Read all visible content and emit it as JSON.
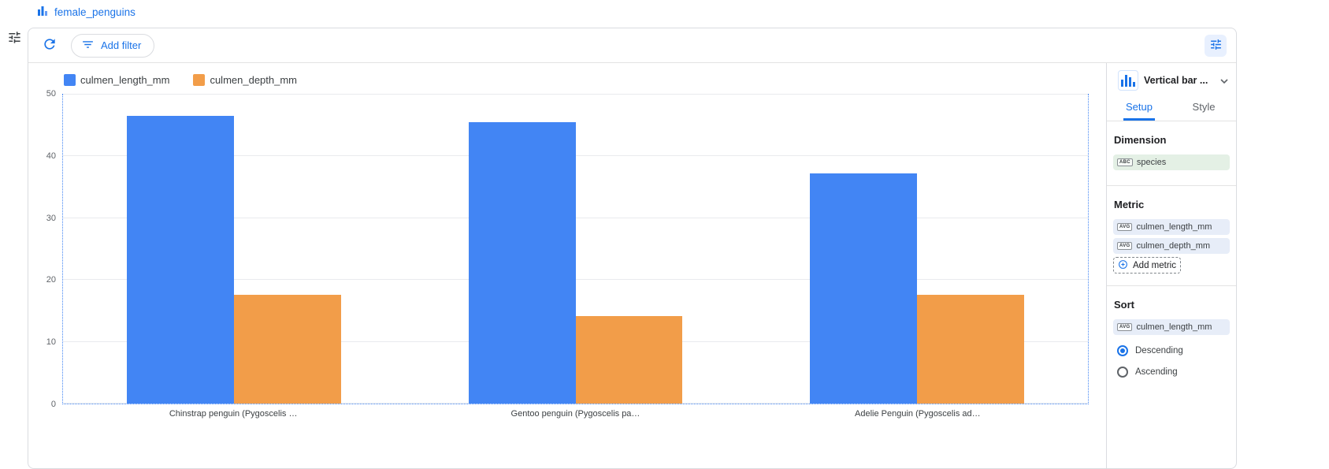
{
  "header": {
    "title": "female_penguins"
  },
  "toolbar": {
    "add_filter": "Add filter"
  },
  "panel": {
    "chart_type": "Vertical bar ...",
    "tabs": {
      "setup": "Setup",
      "style": "Style"
    },
    "dimension": {
      "heading": "Dimension",
      "chip": {
        "badge": "ABC",
        "label": "species"
      }
    },
    "metric": {
      "heading": "Metric",
      "chips": [
        {
          "badge": "AVG",
          "label": "culmen_length_mm"
        },
        {
          "badge": "AVG",
          "label": "culmen_depth_mm"
        }
      ],
      "add_label": "Add metric"
    },
    "sort": {
      "heading": "Sort",
      "chip": {
        "badge": "AVG",
        "label": "culmen_length_mm"
      },
      "descending": "Descending",
      "ascending": "Ascending",
      "selected": "Descending"
    }
  },
  "chart_data": {
    "type": "bar",
    "title": "",
    "categories": [
      "Chinstrap penguin (Pygoscelis …",
      "Gentoo penguin (Pygoscelis pa…",
      "Adelie Penguin (Pygoscelis ad…"
    ],
    "series": [
      {
        "name": "culmen_length_mm",
        "color": "#4285f4",
        "values": [
          46.6,
          45.6,
          37.3
        ]
      },
      {
        "name": "culmen_depth_mm",
        "color": "#f29d49",
        "values": [
          17.6,
          14.2,
          17.6
        ]
      }
    ],
    "xlabel": "",
    "ylabel": "",
    "ylim": [
      0,
      50
    ],
    "yticks": [
      0,
      10,
      20,
      30,
      40,
      50
    ],
    "grid": true,
    "legend_position": "top-left"
  },
  "colors": {
    "accent": "#1a73e8",
    "bar_blue": "#4285f4",
    "bar_orange": "#f29d49",
    "dimension_chip_bg": "#e4f0e5",
    "metric_chip_bg": "#e7edf8",
    "selected_button_bg": "#e8f0fe"
  }
}
